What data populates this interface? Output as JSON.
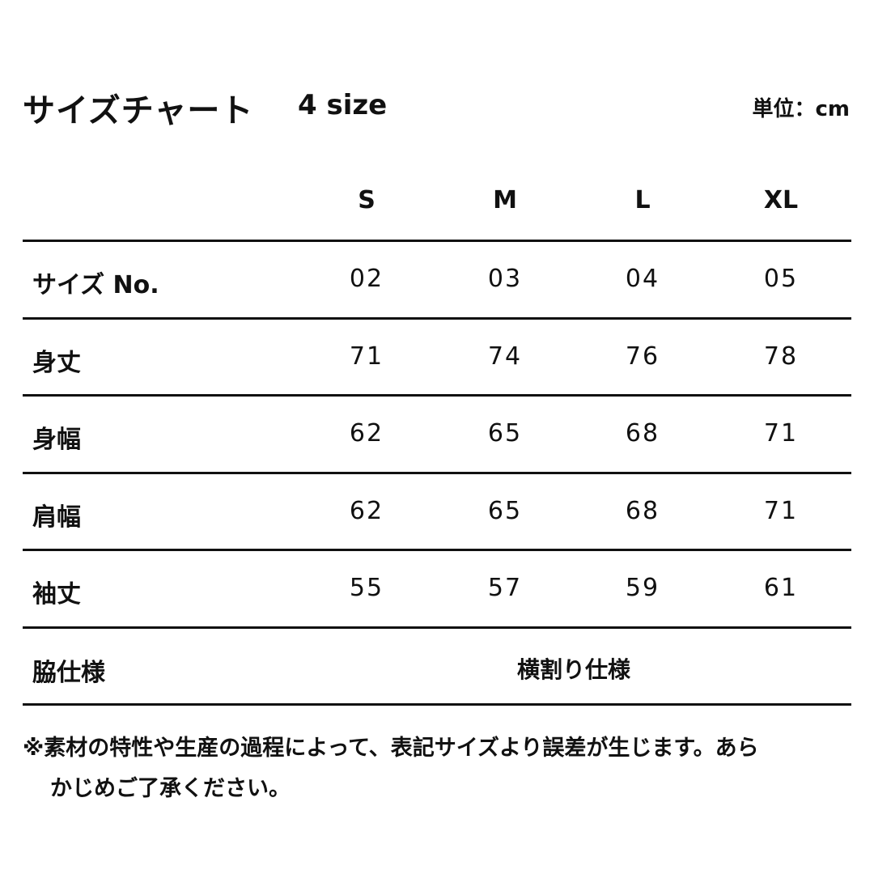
{
  "title": "サイズチャート",
  "size_count": "4 size",
  "unit": "単位：cm",
  "columns": [
    "S",
    "M",
    "L",
    "XL"
  ],
  "rows": [
    {
      "label": "サイズ No.",
      "values": [
        "02",
        "03",
        "04",
        "05"
      ]
    },
    {
      "label": "身丈",
      "values": [
        "71",
        "74",
        "76",
        "78"
      ]
    },
    {
      "label": "身幅",
      "values": [
        "62",
        "65",
        "68",
        "71"
      ]
    },
    {
      "label": "肩幅",
      "values": [
        "62",
        "65",
        "68",
        "71"
      ]
    },
    {
      "label": "袖丈",
      "values": [
        "55",
        "57",
        "59",
        "61"
      ]
    }
  ],
  "side_spec": {
    "label": "脇仕様",
    "value": "横割り仕様"
  },
  "note": {
    "line1": "※素材の特性や生産の過程によって、表記サイズより誤差が生じます。あら",
    "line2": "かじめご了承ください。"
  }
}
